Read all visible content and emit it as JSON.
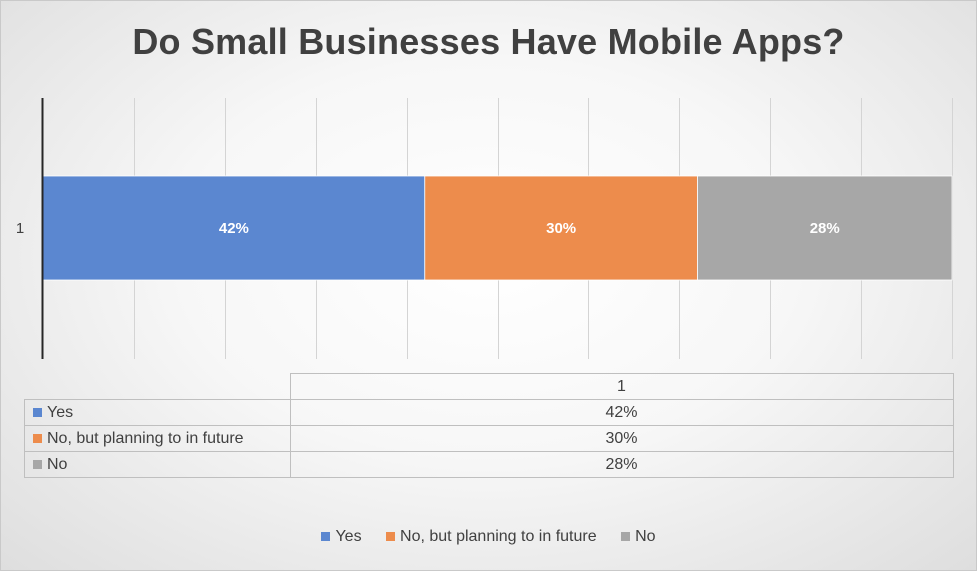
{
  "chart_data": {
    "type": "bar",
    "orientation": "horizontal",
    "stacking": "percent",
    "title": "Do Small Businesses Have Mobile Apps?",
    "categories": [
      "1"
    ],
    "series": [
      {
        "name": "Yes",
        "values": [
          42
        ],
        "label": "42%",
        "color": "#5b87d0"
      },
      {
        "name": "No, but planning to in future",
        "values": [
          30
        ],
        "label": "30%",
        "color": "#ed8c4c"
      },
      {
        "name": "No",
        "values": [
          28
        ],
        "label": "28%",
        "color": "#a7a7a7"
      }
    ],
    "xlim": [
      0,
      100
    ],
    "grid": true,
    "legend": "bottom",
    "data_table": {
      "header": "1",
      "rows": [
        {
          "name": "Yes",
          "value": "42%"
        },
        {
          "name": "No, but planning to in future",
          "value": "30%"
        },
        {
          "name": "No",
          "value": "28%"
        }
      ]
    }
  }
}
